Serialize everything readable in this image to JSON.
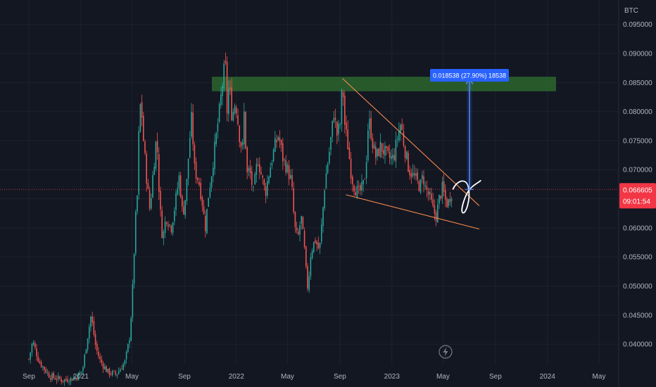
{
  "chart_data": {
    "type": "candlestick",
    "currency_label": "BTC",
    "y_ticks": [
      "0.095000",
      "0.090000",
      "0.085000",
      "0.080000",
      "0.075000",
      "0.070000",
      "0.065000",
      "0.060000",
      "0.055000",
      "0.050000",
      "0.045000",
      "0.040000"
    ],
    "x_ticks": [
      "Sep",
      "2021",
      "May",
      "Sep",
      "2022",
      "May",
      "Sep",
      "2023",
      "May",
      "Sep",
      "2024",
      "May"
    ],
    "ylim": [
      0.0365,
      0.0992
    ],
    "current_price": "0.066605",
    "countdown": "09:01:54",
    "measure_label": "0.018538 (27.90%) 18538",
    "resistance_zone": [
      0.0835,
      0.086
    ],
    "price_series": [
      [
        "2020-09-01",
        0.0374
      ],
      [
        "2020-09-10",
        0.0405
      ],
      [
        "2020-09-25",
        0.037
      ],
      [
        "2020-10-20",
        0.0345
      ],
      [
        "2020-11-20",
        0.0338
      ],
      [
        "2020-12-20",
        0.0342
      ],
      [
        "2021-01-05",
        0.0355
      ],
      [
        "2021-01-15",
        0.0405
      ],
      [
        "2021-01-25",
        0.045
      ],
      [
        "2021-02-05",
        0.0395
      ],
      [
        "2021-02-15",
        0.0372
      ],
      [
        "2021-03-05",
        0.0352
      ],
      [
        "2021-03-25",
        0.0348
      ],
      [
        "2021-04-15",
        0.037
      ],
      [
        "2021-04-25",
        0.041
      ],
      [
        "2021-05-01",
        0.047
      ],
      [
        "2021-05-05",
        0.054
      ],
      [
        "2021-05-09",
        0.061
      ],
      [
        "2021-05-14",
        0.066
      ],
      [
        "2021-05-18",
        0.079
      ],
      [
        "2021-05-22",
        0.082
      ],
      [
        "2021-05-28",
        0.075
      ],
      [
        "2021-06-05",
        0.068
      ],
      [
        "2021-06-12",
        0.063
      ],
      [
        "2021-06-20",
        0.07
      ],
      [
        "2021-06-28",
        0.076
      ],
      [
        "2021-07-05",
        0.064
      ],
      [
        "2021-07-12",
        0.058
      ],
      [
        "2021-07-20",
        0.062
      ],
      [
        "2021-08-01",
        0.06
      ],
      [
        "2021-08-10",
        0.064
      ],
      [
        "2021-08-20",
        0.069
      ],
      [
        "2021-08-28",
        0.062
      ],
      [
        "2021-09-05",
        0.066
      ],
      [
        "2021-09-12",
        0.074
      ],
      [
        "2021-09-18",
        0.079
      ],
      [
        "2021-09-25",
        0.07
      ],
      [
        "2021-10-05",
        0.068
      ],
      [
        "2021-10-12",
        0.065
      ],
      [
        "2021-10-20",
        0.06
      ],
      [
        "2021-10-28",
        0.066
      ],
      [
        "2021-11-05",
        0.07
      ],
      [
        "2021-11-15",
        0.076
      ],
      [
        "2021-11-22",
        0.08
      ],
      [
        "2021-11-28",
        0.084
      ],
      [
        "2021-12-03",
        0.087
      ],
      [
        "2021-12-06",
        0.0885
      ],
      [
        "2021-12-10",
        0.08
      ],
      [
        "2021-12-15",
        0.085
      ],
      [
        "2021-12-22",
        0.079
      ],
      [
        "2021-12-30",
        0.082
      ],
      [
        "2022-01-08",
        0.076
      ],
      [
        "2022-01-15",
        0.073
      ],
      [
        "2022-01-20",
        0.081
      ],
      [
        "2022-01-25",
        0.069
      ],
      [
        "2022-02-01",
        0.07
      ],
      [
        "2022-02-10",
        0.066
      ],
      [
        "2022-02-20",
        0.072
      ],
      [
        "2022-03-01",
        0.069
      ],
      [
        "2022-03-10",
        0.066
      ],
      [
        "2022-03-20",
        0.07
      ],
      [
        "2022-04-01",
        0.074
      ],
      [
        "2022-04-10",
        0.076
      ],
      [
        "2022-04-20",
        0.072
      ],
      [
        "2022-05-01",
        0.07
      ],
      [
        "2022-05-10",
        0.068
      ],
      [
        "2022-05-18",
        0.06
      ],
      [
        "2022-05-25",
        0.058
      ],
      [
        "2022-06-02",
        0.062
      ],
      [
        "2022-06-10",
        0.056
      ],
      [
        "2022-06-15",
        0.051
      ],
      [
        "2022-06-18",
        0.0495
      ],
      [
        "2022-06-25",
        0.056
      ],
      [
        "2022-07-05",
        0.058
      ],
      [
        "2022-07-15",
        0.056
      ],
      [
        "2022-07-22",
        0.062
      ],
      [
        "2022-07-28",
        0.068
      ],
      [
        "2022-08-05",
        0.072
      ],
      [
        "2022-08-12",
        0.076
      ],
      [
        "2022-08-18",
        0.08
      ],
      [
        "2022-08-25",
        0.076
      ],
      [
        "2022-09-02",
        0.078
      ],
      [
        "2022-09-07",
        0.0855
      ],
      [
        "2022-09-12",
        0.078
      ],
      [
        "2022-09-20",
        0.074
      ],
      [
        "2022-09-28",
        0.069
      ],
      [
        "2022-10-05",
        0.067
      ],
      [
        "2022-10-15",
        0.066
      ],
      [
        "2022-10-25",
        0.067
      ],
      [
        "2022-11-01",
        0.07
      ],
      [
        "2022-11-05",
        0.077
      ],
      [
        "2022-11-10",
        0.078
      ],
      [
        "2022-11-18",
        0.074
      ],
      [
        "2022-11-25",
        0.072
      ],
      [
        "2022-12-05",
        0.074
      ],
      [
        "2022-12-15",
        0.073
      ],
      [
        "2022-12-25",
        0.072
      ],
      [
        "2023-01-05",
        0.072
      ],
      [
        "2023-01-15",
        0.076
      ],
      [
        "2023-01-22",
        0.078
      ],
      [
        "2023-01-30",
        0.074
      ],
      [
        "2023-02-10",
        0.07
      ],
      [
        "2023-02-20",
        0.069
      ],
      [
        "2023-03-01",
        0.068
      ],
      [
        "2023-03-08",
        0.067
      ],
      [
        "2023-03-15",
        0.069
      ],
      [
        "2023-03-20",
        0.067
      ],
      [
        "2023-04-01",
        0.065
      ],
      [
        "2023-04-08",
        0.063
      ],
      [
        "2023-04-15",
        0.062
      ],
      [
        "2023-04-22",
        0.065
      ],
      [
        "2023-04-30",
        0.067
      ],
      [
        "2023-05-05",
        0.065
      ],
      [
        "2023-05-12",
        0.064
      ],
      [
        "2023-05-18",
        0.0655
      ],
      [
        "2023-05-24",
        0.0666
      ]
    ]
  }
}
